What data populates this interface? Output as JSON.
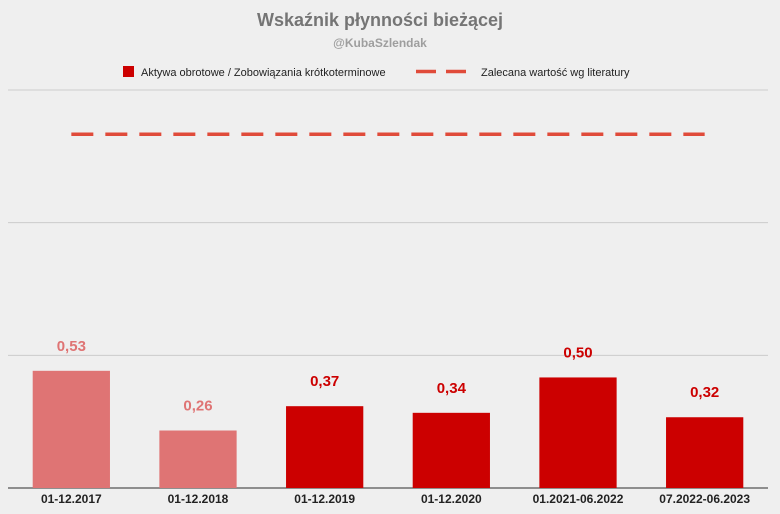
{
  "chart_data": {
    "type": "bar",
    "title": "Wskaźnik płynności bieżącej",
    "subtitle": "@KubaSzlendak",
    "categories": [
      "01-12.2017",
      "01-12.2018",
      "01-12.2019",
      "01-12.2020",
      "01.2021-06.2022",
      "07.2022-06.2023"
    ],
    "series": [
      {
        "name": "Aktywa obrotowe / Zobowiązania krótkoterminowe",
        "values": [
          0.53,
          0.26,
          0.37,
          0.34,
          0.5,
          0.32
        ],
        "labels": [
          "0,53",
          "0,26",
          "0,37",
          "0,34",
          "0,50",
          "0,32"
        ],
        "colors": [
          "#df7474",
          "#df7474",
          "#cc0000",
          "#cc0000",
          "#cc0000",
          "#cc0000"
        ]
      },
      {
        "name": "Zalecana wartość wg literatury",
        "type": "line",
        "style": "dashed",
        "value": 1.6,
        "color": "#e04b3a"
      }
    ],
    "ylim": [
      0,
      1.8
    ],
    "y_gridlines": [
      0,
      0.6,
      1.2,
      1.8
    ],
    "y_tick_labels_shown": false,
    "grid": true,
    "legend_position": "top",
    "colors": {
      "bar_primary": "#cc0000",
      "bar_faded": "#df7474",
      "reference_line": "#e04b3a",
      "title": "#757575",
      "subtitle": "#9e9e9e",
      "gridline": "#cccccc",
      "background": "#efefef"
    }
  }
}
